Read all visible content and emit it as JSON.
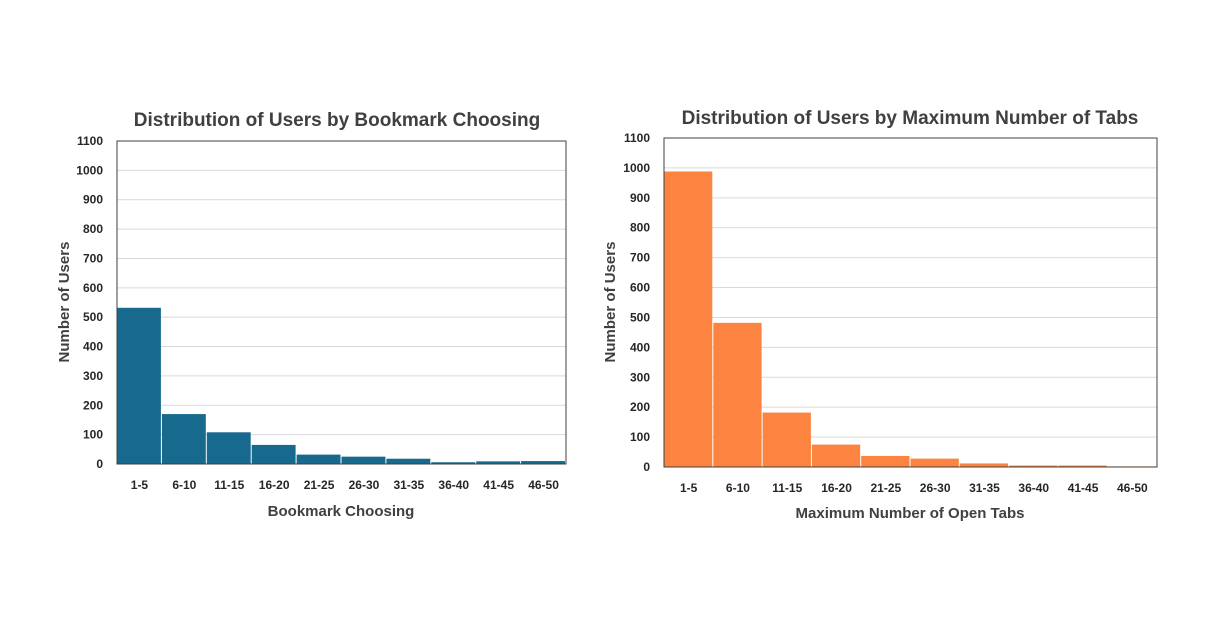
{
  "chart_data": [
    {
      "type": "bar",
      "title": "Distribution of Users by Bookmark Choosing",
      "xlabel": "Bookmark Choosing",
      "ylabel": "Number of Users",
      "ylim": [
        0,
        1100
      ],
      "yticks": [
        0,
        100,
        200,
        300,
        400,
        500,
        600,
        700,
        800,
        900,
        1000,
        1100
      ],
      "grid": true,
      "color": "#17698e",
      "categories": [
        "1-5",
        "6-10",
        "11-15",
        "16-20",
        "21-25",
        "26-30",
        "31-35",
        "36-40",
        "41-45",
        "46-50"
      ],
      "values": [
        532,
        170,
        108,
        65,
        32,
        25,
        18,
        6,
        9,
        10
      ]
    },
    {
      "type": "bar",
      "title": "Distribution of Users by Maximum Number of Tabs",
      "xlabel": "Maximum Number of Open Tabs",
      "ylabel": "Number of Users",
      "ylim": [
        0,
        1100
      ],
      "yticks": [
        0,
        100,
        200,
        300,
        400,
        500,
        600,
        700,
        800,
        900,
        1000,
        1100
      ],
      "grid": true,
      "color": "#fc8440",
      "categories": [
        "1-5",
        "6-10",
        "11-15",
        "16-20",
        "21-25",
        "26-30",
        "31-35",
        "36-40",
        "41-45",
        "46-50"
      ],
      "values": [
        988,
        482,
        182,
        75,
        37,
        28,
        12,
        5,
        5,
        2
      ]
    }
  ]
}
